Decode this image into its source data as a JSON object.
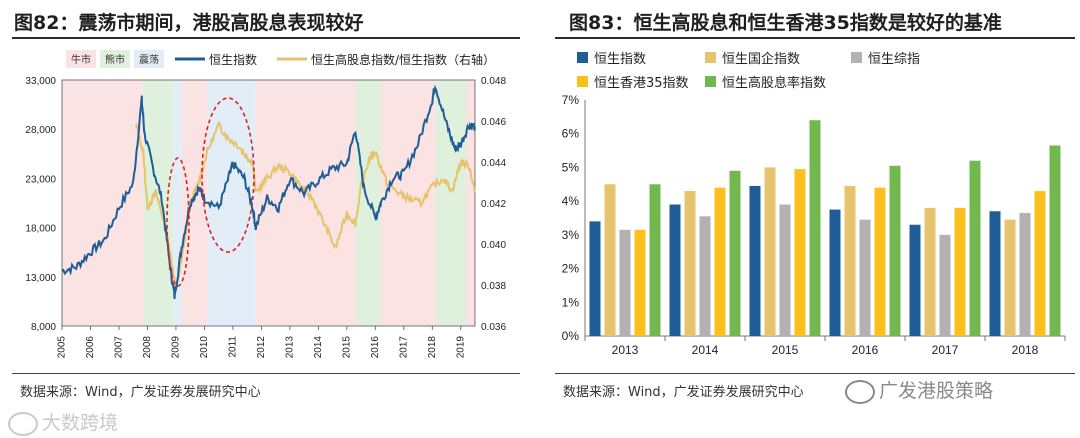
{
  "left": {
    "title": "图82：震荡市期间，港股高股息表现较好",
    "source": "数据来源：Wind，广发证券发展研究中心",
    "legend": {
      "regimes": [
        "牛市",
        "熊市",
        "震荡"
      ],
      "series1": "恒生指数",
      "series2": "恒生高股息指数/恒生指数（右轴）"
    },
    "colors": {
      "hsi": "#1f5d97",
      "ratio": "#e6c36d",
      "bull": "#fbe3e3",
      "bear": "#dff0dc",
      "range": "#e3edf7",
      "ellipse": "#e02020"
    }
  },
  "right": {
    "title": "图83：恒生高股息和恒生香港35指数是较好的基准",
    "source": "数据来源：Wind，广发证券发展研究中心",
    "watermark": "广发港股策略"
  },
  "bottom_watermark": "大数跨境",
  "chart_data": [
    {
      "type": "line",
      "title": "震荡市期间，港股高股息表现较好",
      "x_ticks": [
        "2005",
        "2006",
        "2007",
        "2008",
        "2009",
        "2010",
        "2011",
        "2012",
        "2013",
        "2014",
        "2015",
        "2016",
        "2017",
        "2018",
        "2019"
      ],
      "y_left": {
        "ticks": [
          "8,000",
          "13,000",
          "18,000",
          "23,000",
          "28,000",
          "33,000"
        ],
        "range": [
          8000,
          33000
        ]
      },
      "y_right": {
        "ticks": [
          "0.036",
          "0.038",
          "0.040",
          "0.042",
          "0.044",
          "0.046",
          "0.048"
        ],
        "range": [
          0.036,
          0.048
        ]
      },
      "regimes": [
        {
          "label": "牛市",
          "from": 2005.0,
          "to": 2007.85
        },
        {
          "label": "熊市",
          "from": 2007.85,
          "to": 2008.9
        },
        {
          "label": "震荡",
          "from": 2008.9,
          "to": 2009.2
        },
        {
          "label": "牛市",
          "from": 2009.2,
          "to": 2010.1
        },
        {
          "label": "震荡",
          "from": 2010.1,
          "to": 2011.8
        },
        {
          "label": "牛市",
          "from": 2011.8,
          "to": 2015.3
        },
        {
          "label": "熊市",
          "from": 2015.3,
          "to": 2016.2
        },
        {
          "label": "牛市",
          "from": 2016.2,
          "to": 2018.1
        },
        {
          "label": "熊市",
          "from": 2018.1,
          "to": 2019.2
        },
        {
          "label": "牛市",
          "from": 2019.2,
          "to": 2019.5
        }
      ],
      "series": [
        {
          "name": "恒生指数",
          "axis": "left",
          "x": [
            2005.0,
            2005.5,
            2006.0,
            2006.5,
            2007.0,
            2007.5,
            2007.8,
            2007.9,
            2008.2,
            2008.5,
            2008.8,
            2008.95,
            2009.2,
            2009.5,
            2009.8,
            2010.0,
            2010.5,
            2010.9,
            2011.0,
            2011.4,
            2011.7,
            2011.8,
            2012.2,
            2012.6,
            2013.0,
            2013.5,
            2014.0,
            2014.5,
            2015.0,
            2015.3,
            2015.6,
            2016.0,
            2016.2,
            2016.6,
            2017.0,
            2017.5,
            2018.0,
            2018.1,
            2018.5,
            2018.8,
            2019.0,
            2019.3,
            2019.5
          ],
          "values": [
            13600,
            14000,
            15500,
            16800,
            20000,
            22500,
            31000,
            27500,
            24000,
            21000,
            14000,
            11000,
            16000,
            20500,
            22000,
            21000,
            20000,
            23500,
            24500,
            23000,
            20000,
            18000,
            21000,
            20000,
            23000,
            21500,
            22800,
            24000,
            24500,
            28000,
            22000,
            19000,
            20500,
            23000,
            23500,
            26500,
            31000,
            32500,
            28500,
            26000,
            26500,
            28500,
            28200
          ]
        },
        {
          "name": "恒生高股息指数/恒生指数（右轴）",
          "axis": "right",
          "x": [
            2007.6,
            2007.85,
            2008.0,
            2008.3,
            2008.6,
            2008.75,
            2009.0,
            2009.2,
            2009.5,
            2009.8,
            2010.1,
            2010.5,
            2010.8,
            2011.2,
            2011.5,
            2011.7,
            2011.8,
            2012.2,
            2012.6,
            2013.0,
            2013.4,
            2013.8,
            2014.2,
            2014.6,
            2015.0,
            2015.3,
            2015.5,
            2015.8,
            2016.0,
            2016.4,
            2016.8,
            2017.2,
            2017.6,
            2018.0,
            2018.4,
            2018.7,
            2019.0,
            2019.3,
            2019.5
          ],
          "values": [
            0.0458,
            0.0445,
            0.0418,
            0.0425,
            0.041,
            0.04,
            0.0378,
            0.0392,
            0.042,
            0.043,
            0.0445,
            0.0458,
            0.0452,
            0.0448,
            0.0442,
            0.044,
            0.0425,
            0.0432,
            0.0438,
            0.0435,
            0.0428,
            0.0422,
            0.041,
            0.0398,
            0.0415,
            0.041,
            0.0428,
            0.0442,
            0.0445,
            0.043,
            0.0425,
            0.0422,
            0.042,
            0.0428,
            0.0432,
            0.0426,
            0.044,
            0.0438,
            0.0425
          ]
        }
      ]
    },
    {
      "type": "bar",
      "title": "恒生高股息和恒生香港35指数是较好的基准",
      "categories": [
        "2013",
        "2014",
        "2015",
        "2016",
        "2017",
        "2018"
      ],
      "y_ticks": [
        "0%",
        "1%",
        "2%",
        "3%",
        "4%",
        "5%",
        "6%",
        "7%"
      ],
      "ylim": [
        0,
        7
      ],
      "series": [
        {
          "name": "恒生指数",
          "color": "#1f5d97",
          "values": [
            3.4,
            3.9,
            4.45,
            3.75,
            3.3,
            3.7
          ]
        },
        {
          "name": "恒生国企指数",
          "color": "#e6c36d",
          "values": [
            4.5,
            4.3,
            5.0,
            4.45,
            3.8,
            3.45
          ]
        },
        {
          "name": "恒生综指",
          "color": "#b2b2b2",
          "values": [
            3.15,
            3.55,
            3.9,
            3.45,
            3.0,
            3.65
          ]
        },
        {
          "name": "恒生香港35指数",
          "color": "#fbc01c",
          "values": [
            3.15,
            4.4,
            4.95,
            4.4,
            3.8,
            4.3
          ]
        },
        {
          "name": "恒生高股息率指数",
          "color": "#73b84e",
          "values": [
            4.5,
            4.9,
            6.4,
            5.05,
            5.2,
            5.65
          ]
        }
      ]
    }
  ]
}
